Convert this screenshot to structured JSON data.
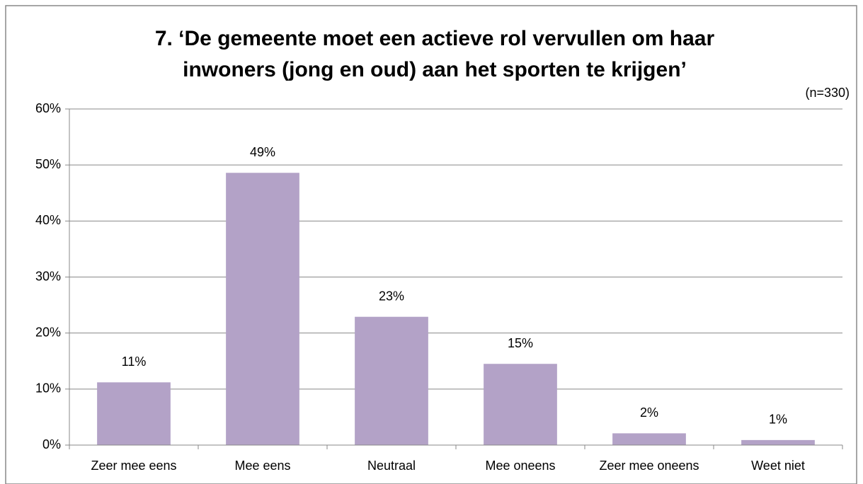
{
  "chart_data": {
    "type": "bar",
    "title": [
      "7.  ‘De gemeente moet een actieve rol vervullen om haar",
      "inwoners (jong en oud) aan het sporten te krijgen’"
    ],
    "annotation": "(n=330)",
    "categories": [
      "Zeer mee eens",
      "Mee eens",
      "Neutraal",
      "Mee oneens",
      "Zeer mee oneens",
      "Weet niet"
    ],
    "values": [
      11.2,
      48.6,
      22.9,
      14.5,
      2.1,
      0.9
    ],
    "value_labels": [
      "11%",
      "49%",
      "23%",
      "15%",
      "2%",
      "1%"
    ],
    "color": "#b3a2c7",
    "ylim": [
      0,
      60
    ],
    "yticks": [
      {
        "value": 0,
        "label": "0%"
      },
      {
        "value": 10,
        "label": "10%"
      },
      {
        "value": 20,
        "label": "20%"
      },
      {
        "value": 30,
        "label": "30%"
      },
      {
        "value": 40,
        "label": "40%"
      },
      {
        "value": 50,
        "label": "50%"
      },
      {
        "value": 60,
        "label": "60%"
      }
    ],
    "grid": true
  }
}
